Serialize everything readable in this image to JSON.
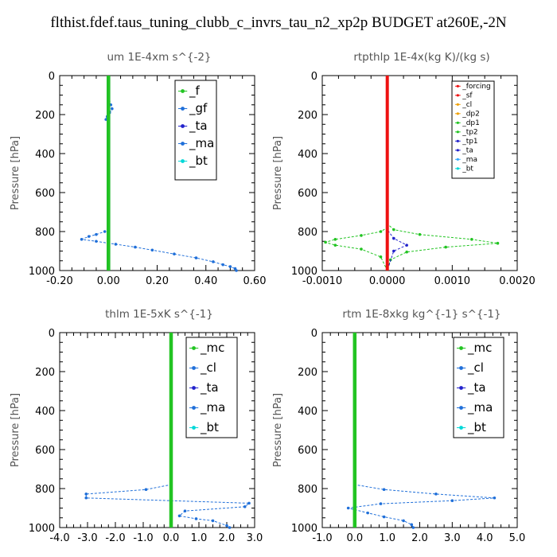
{
  "title": "flthist.fdef.taus_tuning_clubb_c_invrs_tau_n2_xp2p  BUDGET at260E,-2N",
  "colors": {
    "green": "#22c422",
    "blue": "#1f6fd9",
    "darkblue": "#2222cc",
    "cyan": "#00d8d8",
    "red": "#ee1111",
    "orange": "#f0a000",
    "sky": "#33aaff"
  },
  "chart_data": [
    {
      "type": "line",
      "title": "um   1E-4xm s^{-2}",
      "ylabel": "Pressure [hPa]",
      "xlim": [
        -0.2,
        0.6
      ],
      "ylim": [
        1000,
        0
      ],
      "xticks": [
        "-0.20",
        "0.00",
        "0.20",
        "0.40",
        "0.60"
      ],
      "xtick_values": [
        -0.2,
        0,
        0.2,
        0.4,
        0.6
      ],
      "yticks": [
        "0",
        "200",
        "400",
        "600",
        "800",
        "1000"
      ],
      "ytick_values": [
        0,
        200,
        400,
        600,
        800,
        1000
      ],
      "legend": [
        "_f",
        "_gf",
        "_ta",
        "_ma",
        "_bt"
      ],
      "legend_colors": [
        "#22c422",
        "#1f6fd9",
        "#2222cc",
        "#1f6fd9",
        "#00d8d8"
      ],
      "series": [
        {
          "name": "_ma",
          "color": "#1f6fd9",
          "points": [
            [
              0,
              0
            ],
            [
              0,
              100
            ],
            [
              0.01,
              150
            ],
            [
              0.015,
              170
            ],
            [
              0.005,
              190
            ],
            [
              -0.005,
              210
            ],
            [
              -0.01,
              225
            ],
            [
              0,
              240
            ],
            [
              0,
              300
            ],
            [
              0,
              400
            ],
            [
              0,
              500
            ],
            [
              0,
              600
            ],
            [
              0,
              700
            ],
            [
              0,
              760
            ],
            [
              0,
              780
            ],
            [
              -0.015,
              800
            ],
            [
              -0.05,
              815
            ],
            [
              -0.08,
              825
            ],
            [
              -0.11,
              840
            ],
            [
              -0.05,
              850
            ],
            [
              0.03,
              865
            ],
            [
              0.11,
              880
            ],
            [
              0.18,
              895
            ],
            [
              0.27,
              915
            ],
            [
              0.36,
              935
            ],
            [
              0.43,
              955
            ],
            [
              0.47,
              970
            ],
            [
              0.5,
              980
            ],
            [
              0.52,
              990
            ],
            [
              0.525,
              1000
            ]
          ]
        },
        {
          "name": "_ta",
          "color": "#2222cc",
          "points": [
            [
              0,
              0
            ],
            [
              0,
              300
            ],
            [
              0,
              600
            ],
            [
              0,
              800
            ],
            [
              0,
              1000
            ]
          ]
        },
        {
          "name": "_f",
          "color": "#22c422",
          "points": [
            [
              0,
              0
            ],
            [
              0,
              200
            ],
            [
              0,
              400
            ],
            [
              0,
              600
            ],
            [
              0,
              800
            ],
            [
              0,
              1000
            ]
          ]
        }
      ]
    },
    {
      "type": "line",
      "title": "rtpthlp   1E-4x(kg K)/(kg s)",
      "ylabel": "Pressure [hPa]",
      "xlim": [
        -0.001,
        0.002
      ],
      "ylim": [
        1000,
        0
      ],
      "xticks": [
        "-0.0010",
        "0.0000",
        "0.0010",
        "0.0020"
      ],
      "xtick_values": [
        -0.001,
        0,
        0.001,
        0.002
      ],
      "yticks": [
        "0",
        "200",
        "400",
        "600",
        "800",
        "1000"
      ],
      "ytick_values": [
        0,
        200,
        400,
        600,
        800,
        1000
      ],
      "legend": [
        "_forcing",
        "_sf",
        "_cl",
        "_dp2",
        "_dp1",
        "_tp2",
        "_tp1",
        "_ta",
        "_ma",
        "_bt"
      ],
      "legend_colors": [
        "#ee1111",
        "#ee1111",
        "#f0a000",
        "#f0a000",
        "#22c422",
        "#22c422",
        "#2222cc",
        "#2222cc",
        "#33aaff",
        "#00d8d8"
      ],
      "series": [
        {
          "name": "_dp1",
          "color": "#22c422",
          "points": [
            [
              0,
              0
            ],
            [
              0,
              600
            ],
            [
              0,
              760
            ],
            [
              0.0001,
              790
            ],
            [
              0.0005,
              815
            ],
            [
              0.0013,
              840
            ],
            [
              0.0017,
              860
            ],
            [
              0.0009,
              880
            ],
            [
              0.0003,
              905
            ],
            [
              5e-05,
              945
            ],
            [
              0,
              1000
            ]
          ]
        },
        {
          "name": "_tp2",
          "color": "#22c422",
          "points": [
            [
              0,
              0
            ],
            [
              0,
              600
            ],
            [
              0,
              780
            ],
            [
              -0.0001,
              800
            ],
            [
              -0.0004,
              820
            ],
            [
              -0.0008,
              840
            ],
            [
              -0.00095,
              855
            ],
            [
              -0.0008,
              870
            ],
            [
              -0.0004,
              890
            ],
            [
              -0.0001,
              930
            ],
            [
              0,
              1000
            ]
          ]
        },
        {
          "name": "_ta",
          "color": "#2222cc",
          "points": [
            [
              0,
              0
            ],
            [
              0,
              790
            ],
            [
              0.0001,
              835
            ],
            [
              0.0003,
              870
            ],
            [
              0.0001,
              900
            ],
            [
              0,
              1000
            ]
          ]
        },
        {
          "name": "_forcing",
          "color": "#ee1111",
          "points": [
            [
              0,
              0
            ],
            [
              0,
              1000
            ]
          ]
        }
      ]
    },
    {
      "type": "line",
      "title": "thlm   1E-5xK s^{-1}",
      "ylabel": "Pressure [hPa]",
      "xlim": [
        -4,
        3
      ],
      "ylim": [
        1000,
        0
      ],
      "xticks": [
        "-4.0",
        "-3.0",
        "-2.0",
        "-1.0",
        "0.0",
        "1.0",
        "2.0",
        "3.0"
      ],
      "xtick_values": [
        -4,
        -3,
        -2,
        -1,
        0,
        1,
        2,
        3
      ],
      "yticks": [
        "0",
        "200",
        "400",
        "600",
        "800",
        "1000"
      ],
      "ytick_values": [
        0,
        200,
        400,
        600,
        800,
        1000
      ],
      "legend": [
        "_mc",
        "_cl",
        "_ta",
        "_ma",
        "_bt"
      ],
      "legend_colors": [
        "#22c422",
        "#1f6fd9",
        "#2222cc",
        "#1f6fd9",
        "#00d8d8"
      ],
      "series": [
        {
          "name": "_cl",
          "color": "#1f6fd9",
          "points": [
            [
              0,
              0
            ],
            [
              0,
              700
            ],
            [
              0,
              780
            ],
            [
              -0.9,
              805
            ],
            [
              -3.05,
              828
            ],
            [
              -3.05,
              848
            ],
            [
              2.8,
              875
            ],
            [
              2.65,
              893
            ],
            [
              0.5,
              915
            ],
            [
              0.3,
              940
            ],
            [
              0.9,
              955
            ],
            [
              1.5,
              965
            ],
            [
              2,
              990
            ],
            [
              2.1,
              1000
            ]
          ]
        },
        {
          "name": "_mc",
          "color": "#22c422",
          "points": [
            [
              0,
              0
            ],
            [
              0,
              200
            ],
            [
              0,
              400
            ],
            [
              0,
              600
            ],
            [
              0,
              800
            ],
            [
              0,
              1000
            ]
          ]
        }
      ]
    },
    {
      "type": "line",
      "title": "rtm   1E-8xkg kg^{-1} s^{-1}",
      "ylabel": "Pressure [hPa]",
      "xlim": [
        -1,
        5
      ],
      "ylim": [
        1000,
        0
      ],
      "xticks": [
        "-1.0",
        "0.0",
        "1.0",
        "2.0",
        "3.0",
        "4.0",
        "5.0"
      ],
      "xtick_values": [
        -1,
        0,
        1,
        2,
        3,
        4,
        5
      ],
      "yticks": [
        "0",
        "200",
        "400",
        "600",
        "800",
        "1000"
      ],
      "ytick_values": [
        0,
        200,
        400,
        600,
        800,
        1000
      ],
      "legend": [
        "_mc",
        "_cl",
        "_ta",
        "_ma",
        "_bt"
      ],
      "legend_colors": [
        "#22c422",
        "#1f6fd9",
        "#2222cc",
        "#1f6fd9",
        "#00d8d8"
      ],
      "series": [
        {
          "name": "_cl",
          "color": "#1f6fd9",
          "points": [
            [
              0,
              0
            ],
            [
              0,
              700
            ],
            [
              0,
              780
            ],
            [
              0.9,
              805
            ],
            [
              2.5,
              828
            ],
            [
              4.3,
              848
            ],
            [
              3,
              862
            ],
            [
              0.8,
              878
            ],
            [
              -0.2,
              900
            ],
            [
              0.4,
              925
            ],
            [
              0.9,
              945
            ],
            [
              1.5,
              965
            ],
            [
              1.75,
              985
            ],
            [
              1.8,
              1000
            ]
          ]
        },
        {
          "name": "_mc",
          "color": "#22c422",
          "points": [
            [
              0,
              0
            ],
            [
              0,
              200
            ],
            [
              0,
              400
            ],
            [
              0,
              600
            ],
            [
              0,
              800
            ],
            [
              0,
              1000
            ]
          ]
        }
      ]
    }
  ]
}
